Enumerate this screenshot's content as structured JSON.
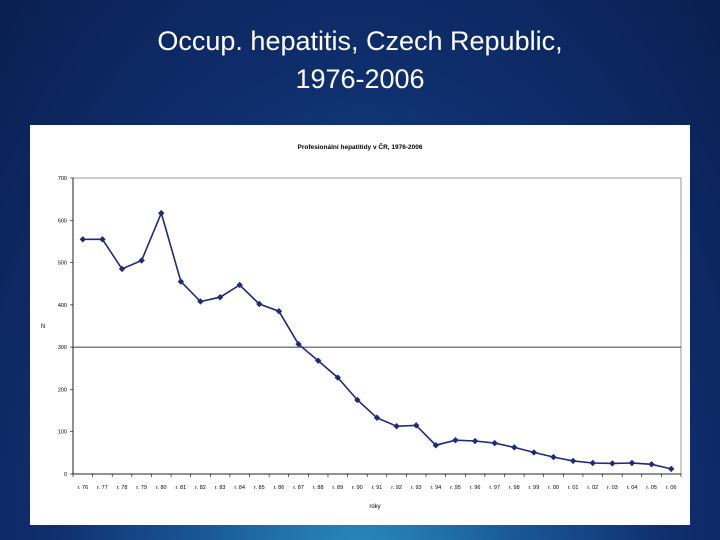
{
  "slide": {
    "title_line1": "Occup. hepatitis, Czech Republic,",
    "title_line2": "1976-2006"
  },
  "chart_data": {
    "type": "line",
    "title": "Profesionální hepatitidy v ČR, 1976-2006",
    "xlabel": "roky",
    "ylabel": "N",
    "ylim": [
      0,
      700
    ],
    "yticks": [
      0,
      100,
      200,
      300,
      400,
      500,
      600,
      700
    ],
    "grid": "gridline at 300 only",
    "legend": "none",
    "categories": [
      "r. 76",
      "r. 77",
      "r. 78",
      "r. 79",
      "r. 80",
      "r. 81",
      "r. 82",
      "r. 83",
      "r. 84",
      "r. 85",
      "r. 86",
      "r. 87",
      "r. 88",
      "r. 89",
      "r. 90",
      "r. 91",
      "r. 92",
      "r. 93",
      "r. 94",
      "r. 95",
      "r. 96",
      "r. 97",
      "r. 98",
      "r. 99",
      "r. 00",
      "r. 01",
      "r. 02",
      "r. 03",
      "r. 04",
      "r. 05",
      "r. 06"
    ],
    "series": [
      {
        "color": "#1f2a7a",
        "marker": "diamond",
        "values": [
          555,
          555,
          485,
          505,
          617,
          455,
          408,
          418,
          447,
          402,
          385,
          307,
          268,
          228,
          175,
          133,
          113,
          115,
          68,
          80,
          78,
          73,
          63,
          51,
          40,
          31,
          26,
          25,
          26,
          23,
          12
        ]
      }
    ]
  }
}
